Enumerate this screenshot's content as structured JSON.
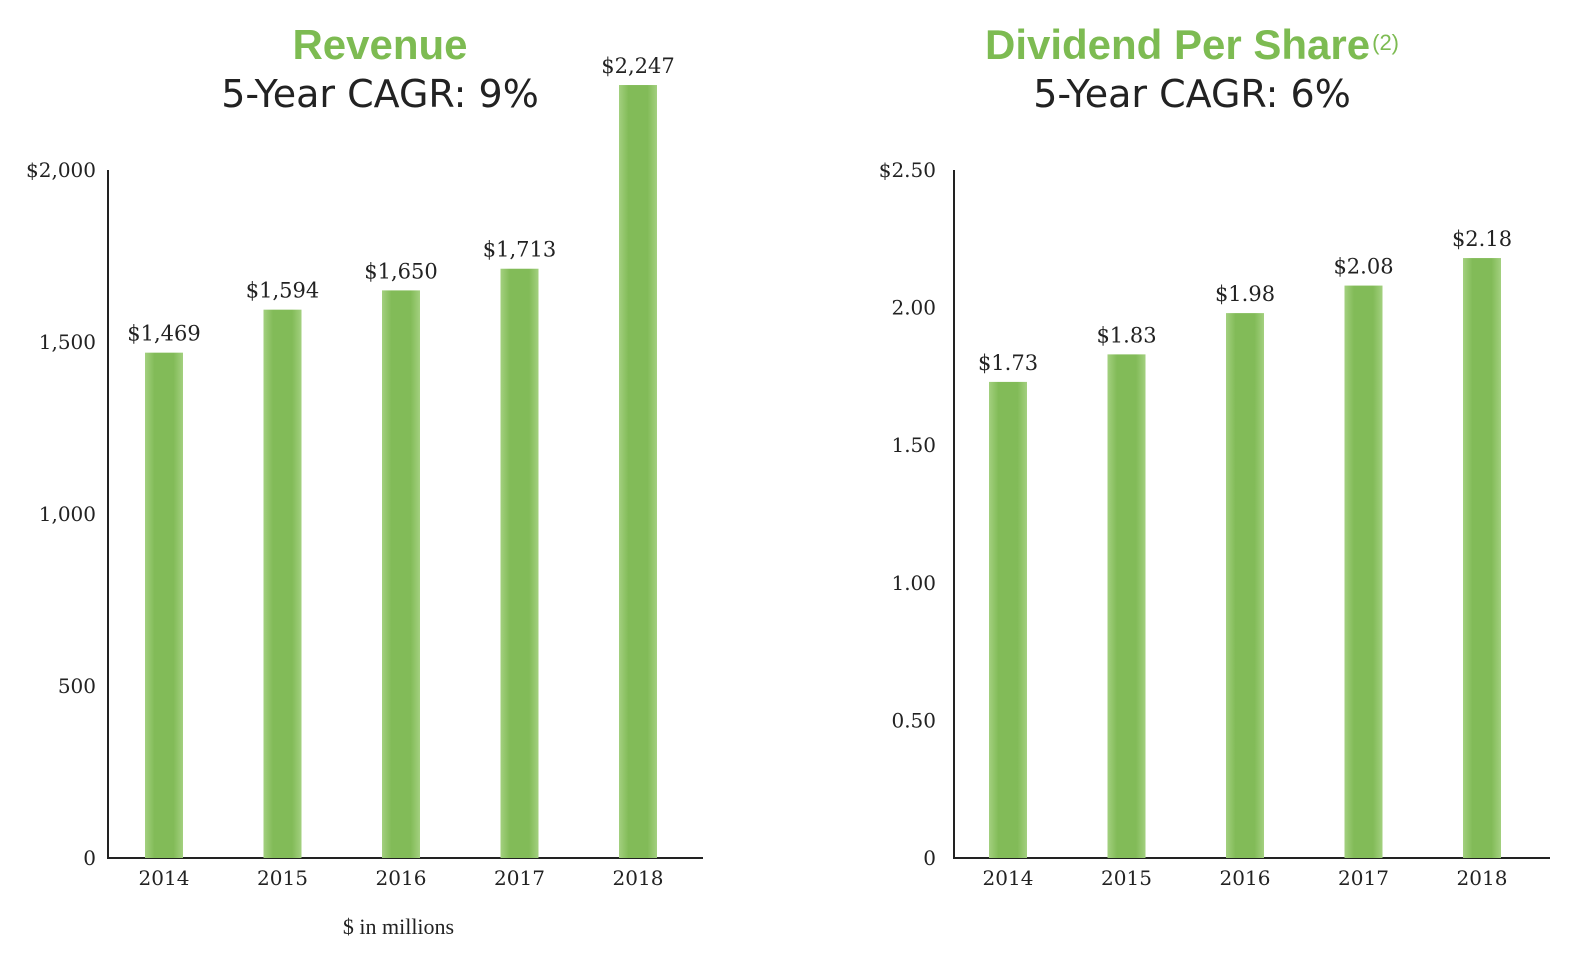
{
  "colors": {
    "title": "#7dbb52",
    "bar_center": "#82bb58",
    "bar_edge": "#a3d07f",
    "axis": "#222222"
  },
  "chart_data": [
    {
      "type": "bar",
      "title": "Revenue",
      "subtitle": "5-Year CAGR: 9%",
      "categories": [
        "2014",
        "2015",
        "2016",
        "2017",
        "2018"
      ],
      "values": [
        1469,
        1594,
        1650,
        1713,
        2247
      ],
      "value_labels": [
        "$1,469",
        "$1,594",
        "$1,650",
        "$1,713",
        "$2,247"
      ],
      "ylim": [
        0,
        2000
      ],
      "yticks": [
        0,
        500,
        1000,
        1500,
        2000
      ],
      "ytick_labels": [
        "0",
        "500",
        "1,000",
        "1,500",
        "$2,000"
      ],
      "xlabel": "$ in millions",
      "grid": false,
      "legend": "none"
    },
    {
      "type": "bar",
      "title": "Dividend Per Share",
      "title_superscript": "(2)",
      "subtitle": "5-Year CAGR: 6%",
      "categories": [
        "2014",
        "2015",
        "2016",
        "2017",
        "2018"
      ],
      "values": [
        1.73,
        1.83,
        1.98,
        2.08,
        2.18
      ],
      "value_labels": [
        "$1.73",
        "$1.83",
        "$1.98",
        "$2.08",
        "$2.18"
      ],
      "ylim": [
        0,
        2.5
      ],
      "yticks": [
        0,
        0.5,
        1.0,
        1.5,
        2.0,
        2.5
      ],
      "ytick_labels": [
        "0",
        "0.50",
        "1.00",
        "1.50",
        "2.00",
        "$2.50"
      ],
      "xlabel": "",
      "grid": false,
      "legend": "none"
    }
  ]
}
